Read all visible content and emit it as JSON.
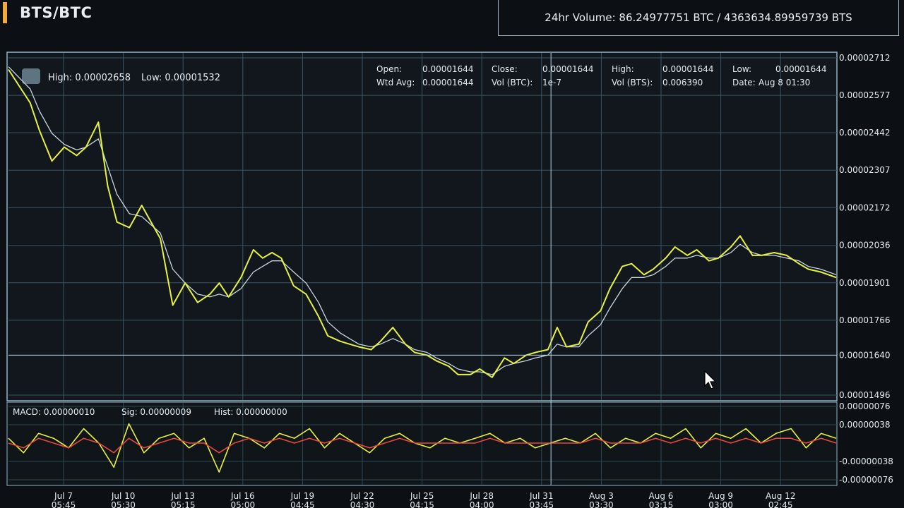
{
  "header": {
    "pair": "BTS/BTC",
    "volume_text": "24hr Volume: 86.24977751 BTC / 4363634.89959739 BTS"
  },
  "price_panel": {
    "high_label": "High: 0.00002658",
    "low_label": "Low: 0.00001532",
    "info": {
      "open_label": "Open:",
      "open_value": "0.00001644",
      "close_label": "Close:",
      "close_value": "0.00001644",
      "high_label": "High:",
      "high_value": "0.00001644",
      "low_label": "Low:",
      "low_value": "0.00001644",
      "wtd_label": "Wtd Avg:",
      "wtd_value": "0.00001644",
      "volbtc_label": "Vol (BTC):",
      "volbtc_value": "1e-7",
      "volbts_label": "Vol (BTS):",
      "volbts_value": "0.006390",
      "date_label": "Date:",
      "date_value": "Aug 8 01:30"
    }
  },
  "macd_panel": {
    "macd_label": "MACD: 0.00000010",
    "sig_label": "Sig: 0.00000009",
    "hist_label": "Hist: 0.00000000"
  },
  "chart_data": [
    {
      "type": "line",
      "panel": "price",
      "y_ticks": [
        "0.00002712",
        "0.00002577",
        "0.00002442",
        "0.00002307",
        "0.00002172",
        "0.00002036",
        "0.00001901",
        "0.00001766",
        "0.00001640",
        "0.00001496"
      ],
      "ylim": [
        1.496e-05,
        2.712e-05
      ],
      "crosshair": {
        "x_index": 17.5,
        "y": 1.64e-05
      },
      "x_ticks": [
        {
          "d": "Jul 7",
          "t": "05:45"
        },
        {
          "d": "Jul 10",
          "t": "05:30"
        },
        {
          "d": "Jul 13",
          "t": "05:15"
        },
        {
          "d": "Jul 16",
          "t": "05:00"
        },
        {
          "d": "Jul 19",
          "t": "04:45"
        },
        {
          "d": "Jul 22",
          "t": "04:30"
        },
        {
          "d": "Jul 25",
          "t": "04:15"
        },
        {
          "d": "Jul 28",
          "t": "04:00"
        },
        {
          "d": "Jul 31",
          "t": "03:45"
        },
        {
          "d": "Aug 3",
          "t": "03:30"
        },
        {
          "d": "Aug 6",
          "t": "03:15"
        },
        {
          "d": "Aug 9",
          "t": "03:00"
        },
        {
          "d": "Aug 12",
          "t": "02:45"
        }
      ],
      "x_index": [
        0,
        0.7,
        1.0,
        1.4,
        1.8,
        2.2,
        2.5,
        2.9,
        3.2,
        3.5,
        3.9,
        4.3,
        4.6,
        4.9,
        5.3,
        5.7,
        6.1,
        6.5,
        6.8,
        7.1,
        7.5,
        7.9,
        8.2,
        8.5,
        8.8,
        9.2,
        9.6,
        10.0,
        10.3,
        10.7,
        11.0,
        11.3,
        11.7,
        12.0,
        12.4,
        12.8,
        13.1,
        13.5,
        13.8,
        14.2,
        14.5,
        14.9,
        15.2,
        15.6,
        16.0,
        16.3,
        16.7,
        17.0,
        17.4,
        17.7,
        18.0,
        18.4,
        18.7,
        19.1,
        19.4,
        19.8,
        20.1,
        20.5,
        20.8,
        21.2,
        21.5,
        21.9,
        22.2,
        22.6,
        22.9,
        23.3,
        23.6,
        24.0,
        24.3,
        24.7,
        25.1,
        25.5,
        25.8,
        26.2,
        26.7
      ],
      "series": [
        {
          "name": "",
          "color": "#e6f23c",
          "values": [
            2.67e-05,
            2.55e-05,
            2.45e-05,
            2.34e-05,
            2.39e-05,
            2.36e-05,
            2.39e-05,
            2.48e-05,
            2.25e-05,
            2.12e-05,
            2.1e-05,
            2.18e-05,
            2.12e-05,
            2.06e-05,
            1.82e-05,
            1.9e-05,
            1.83e-05,
            1.86e-05,
            1.9e-05,
            1.85e-05,
            1.92e-05,
            2.02e-05,
            1.99e-05,
            2.01e-05,
            1.99e-05,
            1.89e-05,
            1.86e-05,
            1.78e-05,
            1.71e-05,
            1.69e-05,
            1.68e-05,
            1.67e-05,
            1.66e-05,
            1.69e-05,
            1.74e-05,
            1.68e-05,
            1.65e-05,
            1.64e-05,
            1.62e-05,
            1.6e-05,
            1.57e-05,
            1.57e-05,
            1.59e-05,
            1.56e-05,
            1.63e-05,
            1.61e-05,
            1.64e-05,
            1.65e-05,
            1.66e-05,
            1.74e-05,
            1.67e-05,
            1.68e-05,
            1.76e-05,
            1.8e-05,
            1.88e-05,
            1.96e-05,
            1.97e-05,
            1.93e-05,
            1.95e-05,
            1.99e-05,
            2.03e-05,
            2e-05,
            2.02e-05,
            1.98e-05,
            1.99e-05,
            2.03e-05,
            2.07e-05,
            2e-05,
            2e-05,
            2.01e-05,
            2e-05,
            1.97e-05,
            1.95e-05,
            1.94e-05,
            1.92e-05
          ]
        },
        {
          "name": "",
          "color": "#c9d6de",
          "values": [
            2.68e-05,
            2.6e-05,
            2.52e-05,
            2.44e-05,
            2.4e-05,
            2.38e-05,
            2.39e-05,
            2.42e-05,
            2.32e-05,
            2.22e-05,
            2.15e-05,
            2.14e-05,
            2.11e-05,
            2.08e-05,
            1.95e-05,
            1.9e-05,
            1.86e-05,
            1.85e-05,
            1.86e-05,
            1.85e-05,
            1.88e-05,
            1.94e-05,
            1.96e-05,
            1.98e-05,
            1.98e-05,
            1.94e-05,
            1.9e-05,
            1.83e-05,
            1.76e-05,
            1.72e-05,
            1.7e-05,
            1.68e-05,
            1.67e-05,
            1.68e-05,
            1.7e-05,
            1.68e-05,
            1.66e-05,
            1.65e-05,
            1.63e-05,
            1.61e-05,
            1.59e-05,
            1.58e-05,
            1.58e-05,
            1.57e-05,
            1.6e-05,
            1.61e-05,
            1.62e-05,
            1.63e-05,
            1.64e-05,
            1.68e-05,
            1.67e-05,
            1.67e-05,
            1.71e-05,
            1.75e-05,
            1.81e-05,
            1.88e-05,
            1.92e-05,
            1.92e-05,
            1.93e-05,
            1.96e-05,
            1.99e-05,
            1.99e-05,
            2e-05,
            1.99e-05,
            1.99e-05,
            2.01e-05,
            2.04e-05,
            2.01e-05,
            2e-05,
            2e-05,
            1.99e-05,
            1.98e-05,
            1.96e-05,
            1.95e-05,
            1.93e-05
          ]
        }
      ]
    },
    {
      "type": "line",
      "panel": "macd",
      "y_ticks": [
        "0.00000076",
        "0.00000038",
        "-0.00000038",
        "-0.00000076"
      ],
      "ylim": [
        -7.6e-07,
        7.6e-07
      ],
      "series": [
        {
          "name": "",
          "color": "#e6f23c",
          "values": [
            1e-07,
            -2e-07,
            2e-07,
            1e-07,
            -1e-07,
            3e-07,
            0.0,
            -5e-07,
            4e-07,
            -2e-07,
            1e-07,
            2e-07,
            -1e-07,
            1e-07,
            -6e-07,
            2e-07,
            1e-07,
            -1e-07,
            2e-07,
            1e-07,
            3e-07,
            -1e-07,
            2e-07,
            0.0,
            -2e-07,
            1e-07,
            2e-07,
            0.0,
            -1e-07,
            1e-07,
            0.0,
            1e-07,
            2e-07,
            0.0,
            1e-07,
            -1e-07,
            0.0,
            1e-07,
            0.0,
            2e-07,
            -1e-07,
            1e-07,
            0.0,
            2e-07,
            1e-07,
            3e-07,
            -1e-07,
            2e-07,
            1e-07,
            3e-07,
            0.0,
            2e-07,
            3e-07,
            -1e-07,
            2e-07,
            1e-07
          ]
        },
        {
          "name": "",
          "color": "#e8483c",
          "values": [
            0.0,
            -1e-07,
            1e-07,
            0.0,
            -1e-07,
            1e-07,
            0.0,
            -2e-07,
            1e-07,
            -1e-07,
            0.0,
            1e-07,
            0.0,
            0.0,
            -2e-07,
            0.0,
            1e-07,
            0.0,
            1e-07,
            0.0,
            1e-07,
            0.0,
            1e-07,
            0.0,
            -1e-07,
            0.0,
            1e-07,
            0.0,
            0.0,
            0.0,
            0.0,
            0.0,
            1e-07,
            0.0,
            0.0,
            0.0,
            0.0,
            0.0,
            0.0,
            1e-07,
            0.0,
            0.0,
            0.0,
            1e-07,
            0.0,
            1e-07,
            0.0,
            1e-07,
            0.0,
            1e-07,
            0.0,
            1e-07,
            1e-07,
            0.0,
            1e-07,
            0.0
          ]
        }
      ]
    }
  ]
}
